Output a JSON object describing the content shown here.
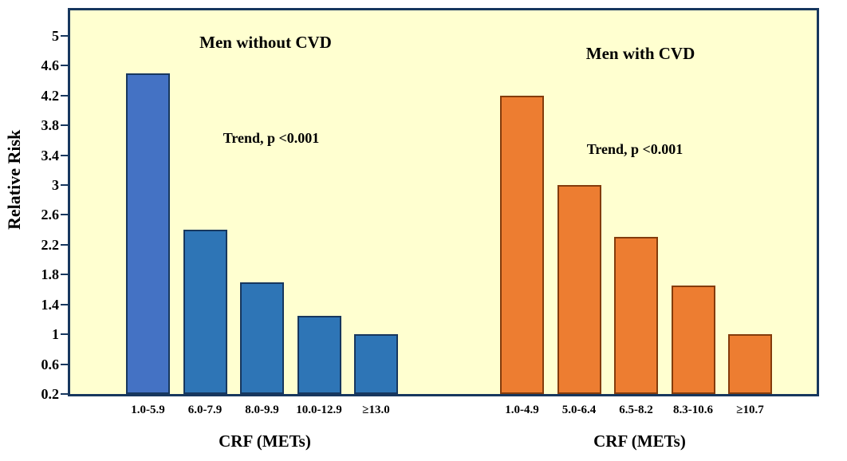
{
  "chart_data": {
    "type": "bar",
    "y_axis": {
      "title": "Relative Risk",
      "min": 0.2,
      "max": 5,
      "tick_labels": [
        "0.2",
        "0.6",
        "1",
        "1.4",
        "1.8",
        "2.2",
        "2.6",
        "3",
        "3.4",
        "3.8",
        "4.2",
        "4.6",
        "5"
      ],
      "tick_values": [
        0.2,
        0.6,
        1,
        1.4,
        1.8,
        2.2,
        2.6,
        3,
        3.4,
        3.8,
        4.2,
        4.6,
        5
      ]
    },
    "plot_background": "#FFFFD0",
    "border_color": "#17375E",
    "grid": "off",
    "legend": "none",
    "groups": [
      {
        "title": "Men without CVD",
        "annotation": "Trend, p <0.001",
        "x_title": "CRF (METs)",
        "categories": [
          "1.0-5.9",
          "6.0-7.9",
          "8.0-9.9",
          "10.0-12.9",
          "≥13.0"
        ],
        "values": [
          4.5,
          2.4,
          1.7,
          1.25,
          1.0
        ],
        "bar_colors": [
          "#4472C4",
          "#2E75B6",
          "#2E75B6",
          "#2E75B6",
          "#2E75B6"
        ],
        "outline_color": "#17375E"
      },
      {
        "title": "Men with CVD",
        "annotation": "Trend, p <0.001",
        "x_title": "CRF (METs)",
        "categories": [
          "1.0-4.9",
          "5.0-6.4",
          "6.5-8.2",
          "8.3-10.6",
          "≥10.7"
        ],
        "values": [
          4.2,
          3.0,
          2.3,
          1.65,
          1.0
        ],
        "bar_colors": [
          "#ED7D31",
          "#ED7D31",
          "#ED7D31",
          "#ED7D31",
          "#ED7D31"
        ],
        "outline_color": "#843C0C"
      }
    ]
  }
}
